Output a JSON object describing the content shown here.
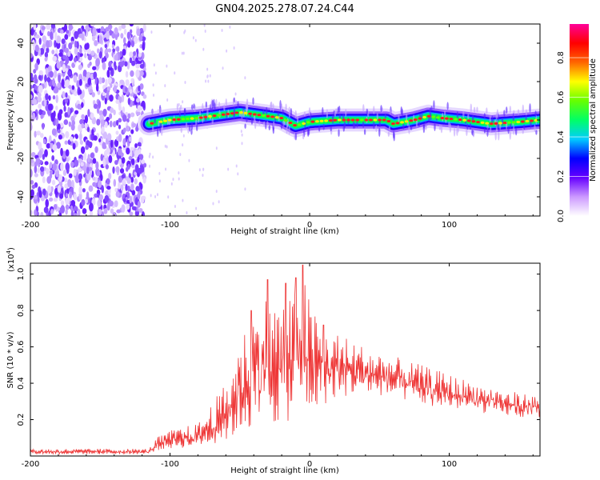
{
  "title": "GN04.2025.278.07.24.C44",
  "chart_data": [
    {
      "type": "heatmap",
      "xlabel": "Height of straight line (km)",
      "ylabel": "Frequency (Hz)",
      "xlim": [
        -200,
        165
      ],
      "ylim": [
        -50,
        50
      ],
      "xticks": [
        -200,
        -100,
        0,
        100
      ],
      "yticks": [
        -40,
        -20,
        0,
        20,
        40
      ],
      "ridge": {
        "x": [
          -115,
          -100,
          -80,
          -60,
          -50,
          -40,
          -20,
          -10,
          0,
          20,
          40,
          55,
          60,
          75,
          85,
          95,
          110,
          130,
          150,
          165
        ],
        "freq": [
          -2,
          0,
          1,
          3,
          4,
          3,
          1,
          -3,
          -1,
          0,
          0,
          0,
          -2,
          0,
          2,
          1,
          0,
          -2,
          -1,
          0
        ]
      },
      "noise_region_x": [
        -200,
        -118
      ],
      "colorbar": {
        "label": "Normalized spectral amplitude",
        "range": [
          0,
          1
        ],
        "ticks": [
          "0.0",
          "0.2",
          "0.4",
          "0.6",
          "0.8"
        ],
        "colors": [
          "#ffffff",
          "#cc99ff",
          "#6600ff",
          "#0000ff",
          "#00ccff",
          "#00ff66",
          "#66ff00",
          "#ffff00",
          "#ff6600",
          "#ff0000",
          "#ff0099"
        ]
      }
    },
    {
      "type": "line",
      "xlabel": "Height of straight line (km)",
      "ylabel": "SNR (10 * v/v)",
      "exponent_label": "(x10",
      "exponent_power": "4",
      "exponent_close": ")",
      "xlim": [
        -200,
        165
      ],
      "ylim": [
        0,
        1.06
      ],
      "xticks": [
        -200,
        -100,
        0,
        100
      ],
      "yticks": [
        "0.2",
        "0.4",
        "0.6",
        "0.8",
        "1.0"
      ],
      "series": [
        {
          "name": "SNR",
          "color": "#ee3333",
          "envelope_x": [
            -200,
            -115,
            -110,
            -100,
            -80,
            -60,
            -50,
            -40,
            -30,
            -20,
            -10,
            -5,
            0,
            10,
            20,
            40,
            60,
            80,
            100,
            120,
            140,
            165
          ],
          "envelope_low": [
            0.01,
            0.01,
            0.03,
            0.04,
            0.05,
            0.08,
            0.12,
            0.15,
            0.16,
            0.18,
            0.2,
            0.2,
            0.22,
            0.28,
            0.32,
            0.34,
            0.32,
            0.28,
            0.26,
            0.24,
            0.22,
            0.2
          ],
          "envelope_high": [
            0.04,
            0.04,
            0.1,
            0.14,
            0.18,
            0.4,
            0.65,
            0.8,
            0.9,
            0.85,
            0.9,
            1.05,
            0.85,
            0.72,
            0.68,
            0.6,
            0.55,
            0.5,
            0.45,
            0.4,
            0.36,
            0.33
          ],
          "spikes": [
            {
              "x": -42,
              "y": 0.8
            },
            {
              "x": -30,
              "y": 0.97
            },
            {
              "x": -17,
              "y": 0.95
            },
            {
              "x": -10,
              "y": 0.98
            },
            {
              "x": -5,
              "y": 1.05
            },
            {
              "x": 10,
              "y": 0.72
            }
          ]
        }
      ]
    }
  ]
}
